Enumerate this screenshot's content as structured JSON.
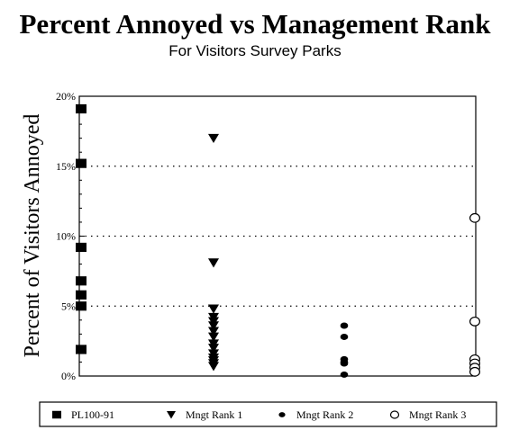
{
  "chart_data": {
    "type": "scatter",
    "title": "Percent Annoyed vs Management Rank",
    "subtitle": "For Visitors Survey Parks",
    "xlabel": "",
    "ylabel": "Percent of Visitors Annoyed",
    "ylim": [
      0,
      20
    ],
    "yticks": [
      {
        "value": 0,
        "label": "0%"
      },
      {
        "value": 5,
        "label": "5%"
      },
      {
        "value": 10,
        "label": "10%"
      },
      {
        "value": 15,
        "label": "15%"
      },
      {
        "value": 20,
        "label": "20%"
      }
    ],
    "xlim": [
      0,
      3
    ],
    "grid": "horizontal dotted",
    "legend_position": "bottom",
    "series": [
      {
        "name": "PL100-91",
        "marker": "square",
        "x": 0,
        "values": [
          19.1,
          15.2,
          9.2,
          6.8,
          5.8,
          5.0,
          1.9
        ]
      },
      {
        "name": "Mngt Rank 1",
        "marker": "triangle-down",
        "x": 1,
        "values": [
          17.0,
          8.1,
          4.8,
          4.2,
          3.9,
          3.6,
          3.2,
          2.8,
          2.3,
          2.0,
          1.6,
          1.3,
          1.1,
          0.9,
          0.7
        ]
      },
      {
        "name": "Mngt Rank 2",
        "marker": "circle-filled",
        "x": 2,
        "values": [
          3.6,
          2.8,
          1.2,
          1.0,
          0.9,
          0.1
        ]
      },
      {
        "name": "Mngt Rank 3",
        "marker": "circle-open",
        "x": 3,
        "values": [
          11.3,
          3.9,
          1.2,
          0.9,
          0.6,
          0.3
        ]
      }
    ]
  }
}
